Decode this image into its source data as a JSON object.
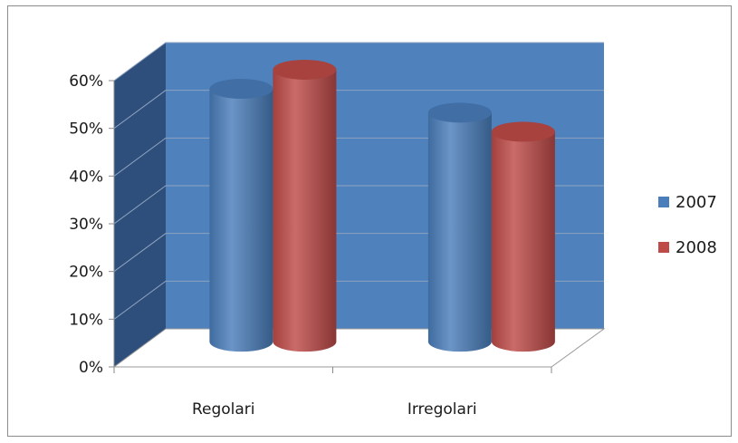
{
  "chart_data": {
    "type": "bar",
    "style": "3d-cylinder",
    "categories": [
      "Regolari",
      "Irregolari"
    ],
    "series": [
      {
        "name": "2007",
        "values": [
          53,
          48
        ],
        "color": "#4a7ebb"
      },
      {
        "name": "2008",
        "values": [
          57,
          44
        ],
        "color": "#be4b48"
      }
    ],
    "ylim": [
      0,
      60
    ],
    "ytick_values": [
      0,
      10,
      20,
      30,
      40,
      50,
      60
    ],
    "ytick_labels": [
      "0%",
      "10%",
      "20%",
      "30%",
      "40%",
      "50%",
      "60%"
    ],
    "title": "",
    "xlabel": "",
    "ylabel": "",
    "grid": true,
    "legend_position": "right",
    "colors": {
      "back_wall": "#4f81bd",
      "side_wall": "#2e4f7c",
      "gridline": "#8fa3bf"
    }
  }
}
